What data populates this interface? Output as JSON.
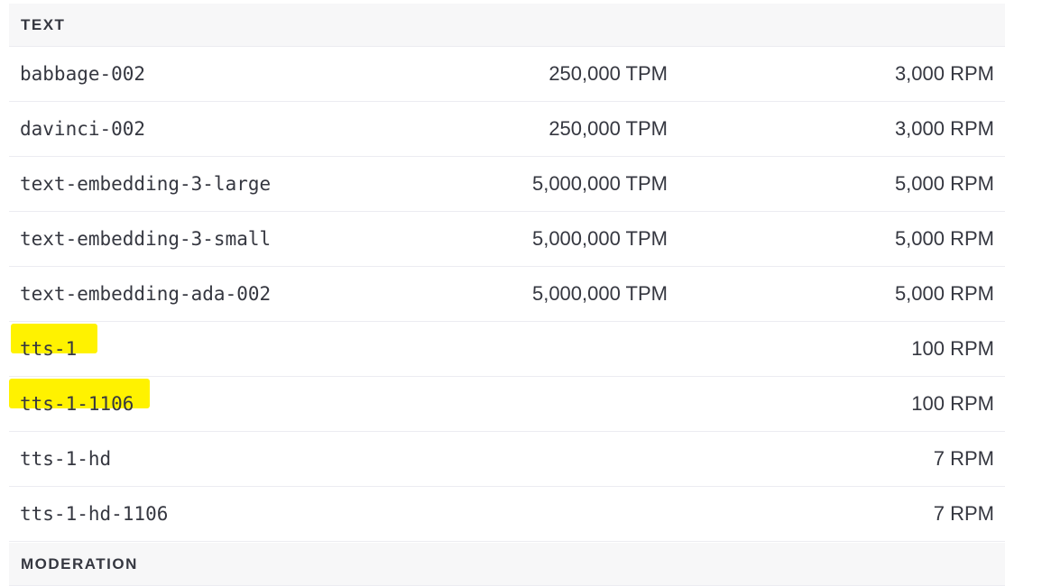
{
  "sections": [
    {
      "title": "TEXT",
      "rows": [
        {
          "model": "babbage-002",
          "tpm": "250,000 TPM",
          "rpm": "3,000 RPM",
          "highlighted": false
        },
        {
          "model": "davinci-002",
          "tpm": "250,000 TPM",
          "rpm": "3,000 RPM",
          "highlighted": false
        },
        {
          "model": "text-embedding-3-large",
          "tpm": "5,000,000 TPM",
          "rpm": "5,000 RPM",
          "highlighted": false
        },
        {
          "model": "text-embedding-3-small",
          "tpm": "5,000,000 TPM",
          "rpm": "5,000 RPM",
          "highlighted": false
        },
        {
          "model": "text-embedding-ada-002",
          "tpm": "5,000,000 TPM",
          "rpm": "5,000 RPM",
          "highlighted": false
        },
        {
          "model": "tts-1",
          "tpm": "",
          "rpm": "100 RPM",
          "highlighted": true
        },
        {
          "model": "tts-1-1106",
          "tpm": "",
          "rpm": "100 RPM",
          "highlighted": true
        },
        {
          "model": "tts-1-hd",
          "tpm": "",
          "rpm": "7 RPM",
          "highlighted": false
        },
        {
          "model": "tts-1-hd-1106",
          "tpm": "",
          "rpm": "7 RPM",
          "highlighted": false
        }
      ]
    },
    {
      "title": "MODERATION",
      "rows": []
    }
  ],
  "colors": {
    "highlight": "#fff200",
    "header_bg": "#f7f7f8",
    "text": "#353740",
    "divider": "#ececf1"
  }
}
